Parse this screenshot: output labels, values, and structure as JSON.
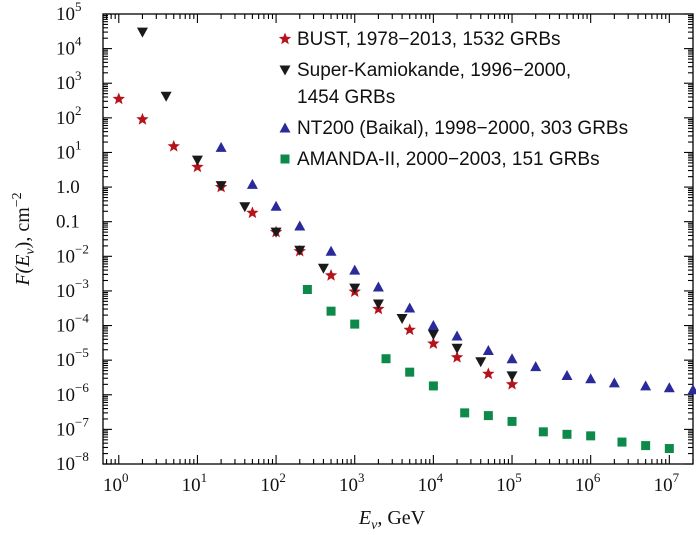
{
  "chart_data": {
    "type": "scatter",
    "x_scale": "log",
    "y_scale": "log",
    "xlim": [
      0.63,
      20000000
    ],
    "ylim": [
      1e-08,
      100000
    ],
    "grid": false,
    "legend_position": "top-right",
    "xlabel_main": "E",
    "xlabel_sub": "ν",
    "xlabel_unit": ", GeV",
    "ylabel_main": "F(E",
    "ylabel_sub": "ν",
    "ylabel_unit": "), cm",
    "ylabel_exp": "−2",
    "x_ticks": [
      {
        "base": "10",
        "exp": "0",
        "value": 1
      },
      {
        "base": "10",
        "exp": "1",
        "value": 10
      },
      {
        "base": "10",
        "exp": "2",
        "value": 100
      },
      {
        "base": "10",
        "exp": "3",
        "value": 1000
      },
      {
        "base": "10",
        "exp": "4",
        "value": 10000
      },
      {
        "base": "10",
        "exp": "5",
        "value": 100000
      },
      {
        "base": "10",
        "exp": "6",
        "value": 1000000
      },
      {
        "base": "10",
        "exp": "7",
        "value": 10000000
      }
    ],
    "y_ticks": [
      {
        "mant": "",
        "base": "10",
        "exp": "5",
        "value": 100000
      },
      {
        "mant": "",
        "base": "10",
        "exp": "4",
        "value": 10000
      },
      {
        "mant": "",
        "base": "10",
        "exp": "3",
        "value": 1000
      },
      {
        "mant": "",
        "base": "10",
        "exp": "2",
        "value": 100
      },
      {
        "mant": "",
        "base": "10",
        "exp": "1",
        "value": 10
      },
      {
        "mant": "1.0",
        "base": "",
        "exp": "",
        "value": 1
      },
      {
        "mant": "0.1",
        "base": "",
        "exp": "",
        "value": 0.1
      },
      {
        "mant": "",
        "base": "10",
        "exp": "−2",
        "value": 0.01
      },
      {
        "mant": "",
        "base": "10",
        "exp": "−3",
        "value": 0.001
      },
      {
        "mant": "",
        "base": "10",
        "exp": "−4",
        "value": 0.0001
      },
      {
        "mant": "",
        "base": "10",
        "exp": "−5",
        "value": 1e-05
      },
      {
        "mant": "",
        "base": "10",
        "exp": "−6",
        "value": 1e-06
      },
      {
        "mant": "",
        "base": "10",
        "exp": "−7",
        "value": 1e-07
      },
      {
        "mant": "",
        "base": "10",
        "exp": "−8",
        "value": 1e-08
      }
    ],
    "series": [
      {
        "name": "BUST, 1978−2013, 1532 GRBs",
        "marker": "star",
        "color": "#b5121b",
        "points": [
          [
            1,
            350
          ],
          [
            2,
            90
          ],
          [
            5,
            15
          ],
          [
            10,
            3.8
          ],
          [
            20,
            1.0
          ],
          [
            50,
            0.18
          ],
          [
            100,
            0.05
          ],
          [
            200,
            0.014
          ],
          [
            500,
            0.0028
          ],
          [
            1000,
            0.00095
          ],
          [
            2000,
            0.0003
          ],
          [
            5000,
            7.5e-05
          ],
          [
            10000,
            3e-05
          ],
          [
            20000,
            1.2e-05
          ],
          [
            50000,
            4e-06
          ],
          [
            100000,
            2e-06
          ]
        ]
      },
      {
        "name": "Super-Kamiokande, 1996−2000,",
        "name_line2": "1454 GRBs",
        "marker": "triangle-down",
        "color": "#1a1a1a",
        "points": [
          [
            2,
            30000
          ],
          [
            4,
            420
          ],
          [
            10,
            6
          ],
          [
            20,
            1.1
          ],
          [
            40,
            0.27
          ],
          [
            100,
            0.05
          ],
          [
            200,
            0.015
          ],
          [
            400,
            0.0045
          ],
          [
            1000,
            0.0012
          ],
          [
            2000,
            0.00042
          ],
          [
            4000,
            0.00016
          ],
          [
            10000,
            5.5e-05
          ],
          [
            20000,
            2.2e-05
          ],
          [
            40000,
            9e-06
          ],
          [
            100000,
            3.5e-06
          ]
        ]
      },
      {
        "name": "NT200 (Baikal), 1998−2000, 303 GRBs",
        "marker": "triangle-up",
        "color": "#2a2a9a",
        "points": [
          [
            20,
            14
          ],
          [
            50,
            1.2
          ],
          [
            100,
            0.28
          ],
          [
            200,
            0.075
          ],
          [
            500,
            0.014
          ],
          [
            1000,
            0.004
          ],
          [
            2000,
            0.0013
          ],
          [
            5000,
            0.00032
          ],
          [
            10000,
            0.0001
          ],
          [
            20000,
            5e-05
          ],
          [
            50000,
            1.9e-05
          ],
          [
            100000,
            1.1e-05
          ],
          [
            200000,
            6.5e-06
          ],
          [
            500000,
            3.6e-06
          ],
          [
            1000000,
            2.9e-06
          ],
          [
            2000000,
            2.2e-06
          ],
          [
            5000000,
            1.8e-06
          ],
          [
            10000000,
            1.6e-06
          ],
          [
            20000000,
            1.4e-06
          ]
        ]
      },
      {
        "name": "AMANDA-II, 2000−2003, 151 GRBs",
        "marker": "square",
        "color": "#0d8a4a",
        "points": [
          [
            250,
            0.0011
          ],
          [
            500,
            0.00026
          ],
          [
            1000,
            0.00011
          ],
          [
            2500,
            1.1e-05
          ],
          [
            5000,
            4.5e-06
          ],
          [
            10000,
            1.8e-06
          ],
          [
            25000,
            3e-07
          ],
          [
            50000,
            2.5e-07
          ],
          [
            100000,
            1.7e-07
          ],
          [
            250000,
            8.5e-08
          ],
          [
            500000,
            7.2e-08
          ],
          [
            1000000,
            6.5e-08
          ],
          [
            2500000,
            4.3e-08
          ],
          [
            5000000,
            3.4e-08
          ],
          [
            10000000,
            2.8e-08
          ]
        ]
      }
    ]
  }
}
